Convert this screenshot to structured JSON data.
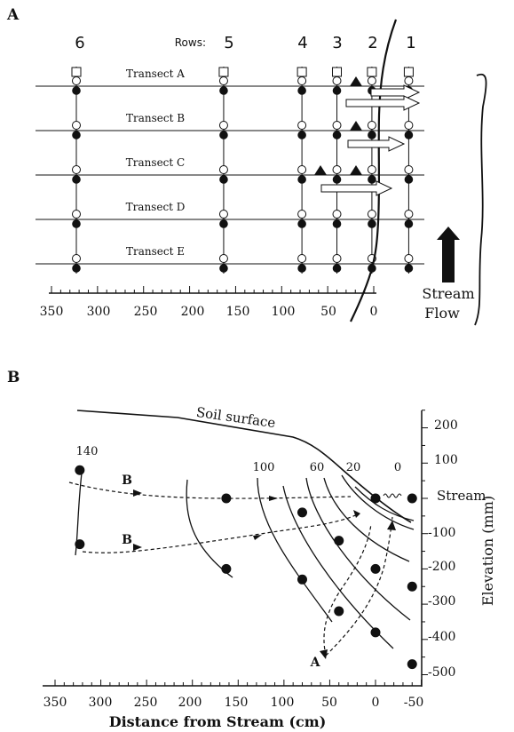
{
  "panel_a": {
    "label": "A",
    "rows_label": "Rows:",
    "row_numbers": [
      "6",
      "5",
      "4",
      "3",
      "2",
      "1"
    ],
    "transects": [
      "Transect A",
      "Transect B",
      "Transect C",
      "Transect D",
      "Transect E"
    ],
    "x_ticks": [
      "350",
      "300",
      "250",
      "200",
      "150",
      "100",
      "50",
      "0"
    ],
    "stream_flow_line1": "Stream",
    "stream_flow_line2": "Flow"
  },
  "panel_b": {
    "label": "B",
    "soil_surface_label": "Soil surface",
    "stream_label": "Stream",
    "xlabel": "Distance from Stream (cm)",
    "ylabel": "Elevation (mm)",
    "x_ticks": [
      "350",
      "300",
      "250",
      "200",
      "150",
      "100",
      "50",
      "0",
      "-50"
    ],
    "y_ticks": [
      "200",
      "100",
      "-100",
      "-200",
      "-300",
      "-400",
      "-500"
    ],
    "contour_labels": [
      "140",
      "100",
      "60",
      "20",
      "0"
    ],
    "flowpath_labels": [
      "B",
      "B",
      "A"
    ]
  },
  "chart_data": [
    {
      "type": "scatter",
      "xlim": [
        350,
        -50
      ],
      "wells_x": [
        323,
        163,
        78,
        40,
        2,
        -38
      ],
      "transects": 5
    },
    {
      "type": "line",
      "xlim": [
        360,
        -55
      ],
      "ylim": [
        -500,
        250
      ],
      "xlabel": "Distance from Stream (cm)",
      "ylabel": "Elevation (mm)",
      "points": [
        {
          "x": 323,
          "y": 80
        },
        {
          "x": 323,
          "y": -130
        },
        {
          "x": 163,
          "y": 0
        },
        {
          "x": 163,
          "y": -200
        },
        {
          "x": 80,
          "y": -40
        },
        {
          "x": 80,
          "y": -230
        },
        {
          "x": 40,
          "y": -120
        },
        {
          "x": 40,
          "y": -320
        },
        {
          "x": 0,
          "y": 0
        },
        {
          "x": 0,
          "y": -200
        },
        {
          "x": 0,
          "y": -380
        },
        {
          "x": -40,
          "y": 0
        },
        {
          "x": -40,
          "y": -250
        },
        {
          "x": -40,
          "y": -470
        }
      ]
    }
  ]
}
